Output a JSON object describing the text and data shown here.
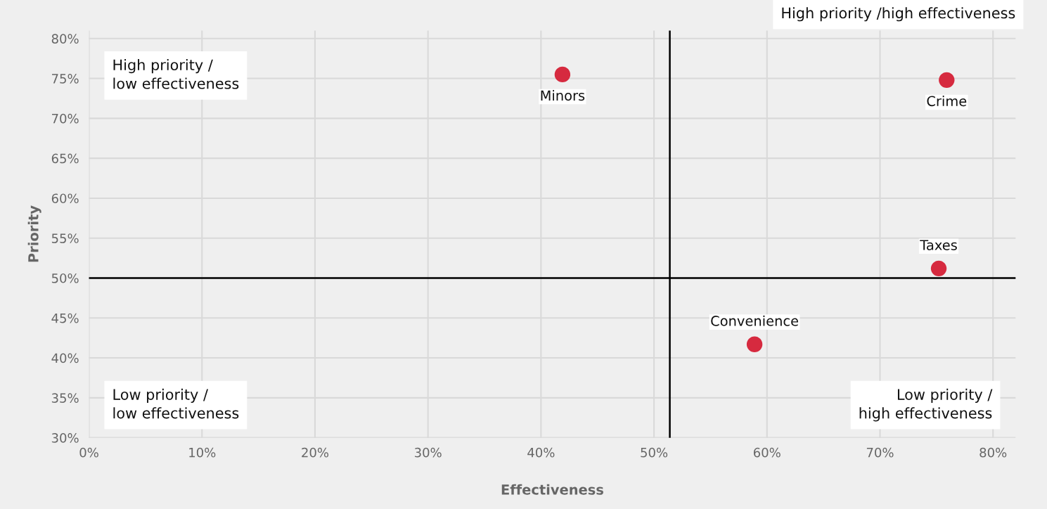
{
  "chart_data": {
    "type": "scatter",
    "xlabel": "Effectiveness",
    "ylabel": "Priority",
    "xlim": [
      0,
      82
    ],
    "ylim": [
      30,
      81
    ],
    "xticks": [
      {
        "value": 0,
        "label": "0%"
      },
      {
        "value": 10,
        "label": "10%"
      },
      {
        "value": 20,
        "label": "20%"
      },
      {
        "value": 30,
        "label": "30%"
      },
      {
        "value": 40,
        "label": "40%"
      },
      {
        "value": 50,
        "label": "50%"
      },
      {
        "value": 60,
        "label": "60%"
      },
      {
        "value": 70,
        "label": "70%"
      },
      {
        "value": 80,
        "label": "80%"
      }
    ],
    "yticks": [
      {
        "value": 30,
        "label": "30%"
      },
      {
        "value": 35,
        "label": "35%"
      },
      {
        "value": 40,
        "label": "40%"
      },
      {
        "value": 45,
        "label": "45%"
      },
      {
        "value": 50,
        "label": "50%"
      },
      {
        "value": 55,
        "label": "55%"
      },
      {
        "value": 60,
        "label": "60%"
      },
      {
        "value": 65,
        "label": "65%"
      },
      {
        "value": 70,
        "label": "70%"
      },
      {
        "value": 75,
        "label": "75%"
      },
      {
        "value": 80,
        "label": "80%"
      }
    ],
    "series": [
      {
        "name": "Minors",
        "color": "#d62a3f",
        "x": [
          41.9
        ],
        "values": [
          75.5
        ]
      },
      {
        "name": "Crime",
        "color": "#d62a3f",
        "x": [
          75.9
        ],
        "values": [
          74.8
        ]
      },
      {
        "name": "Taxes",
        "color": "#d62a3f",
        "x": [
          75.2
        ],
        "values": [
          51.2
        ]
      },
      {
        "name": "Convenience",
        "color": "#d62a3f",
        "x": [
          58.9
        ],
        "values": [
          41.7
        ]
      }
    ],
    "ref_lines": [
      {
        "axis": "x",
        "value": 51.4,
        "color": "#000000"
      },
      {
        "axis": "y",
        "value": 50,
        "color": "#000000"
      }
    ],
    "annotations": [
      "High priority /\nlow effectiveness",
      "High priority /high effectiveness",
      "Low priority /\nlow effectiveness",
      "Low priority /\nhigh effectiveness"
    ],
    "grid": true,
    "marker": "circle",
    "legend": false
  }
}
